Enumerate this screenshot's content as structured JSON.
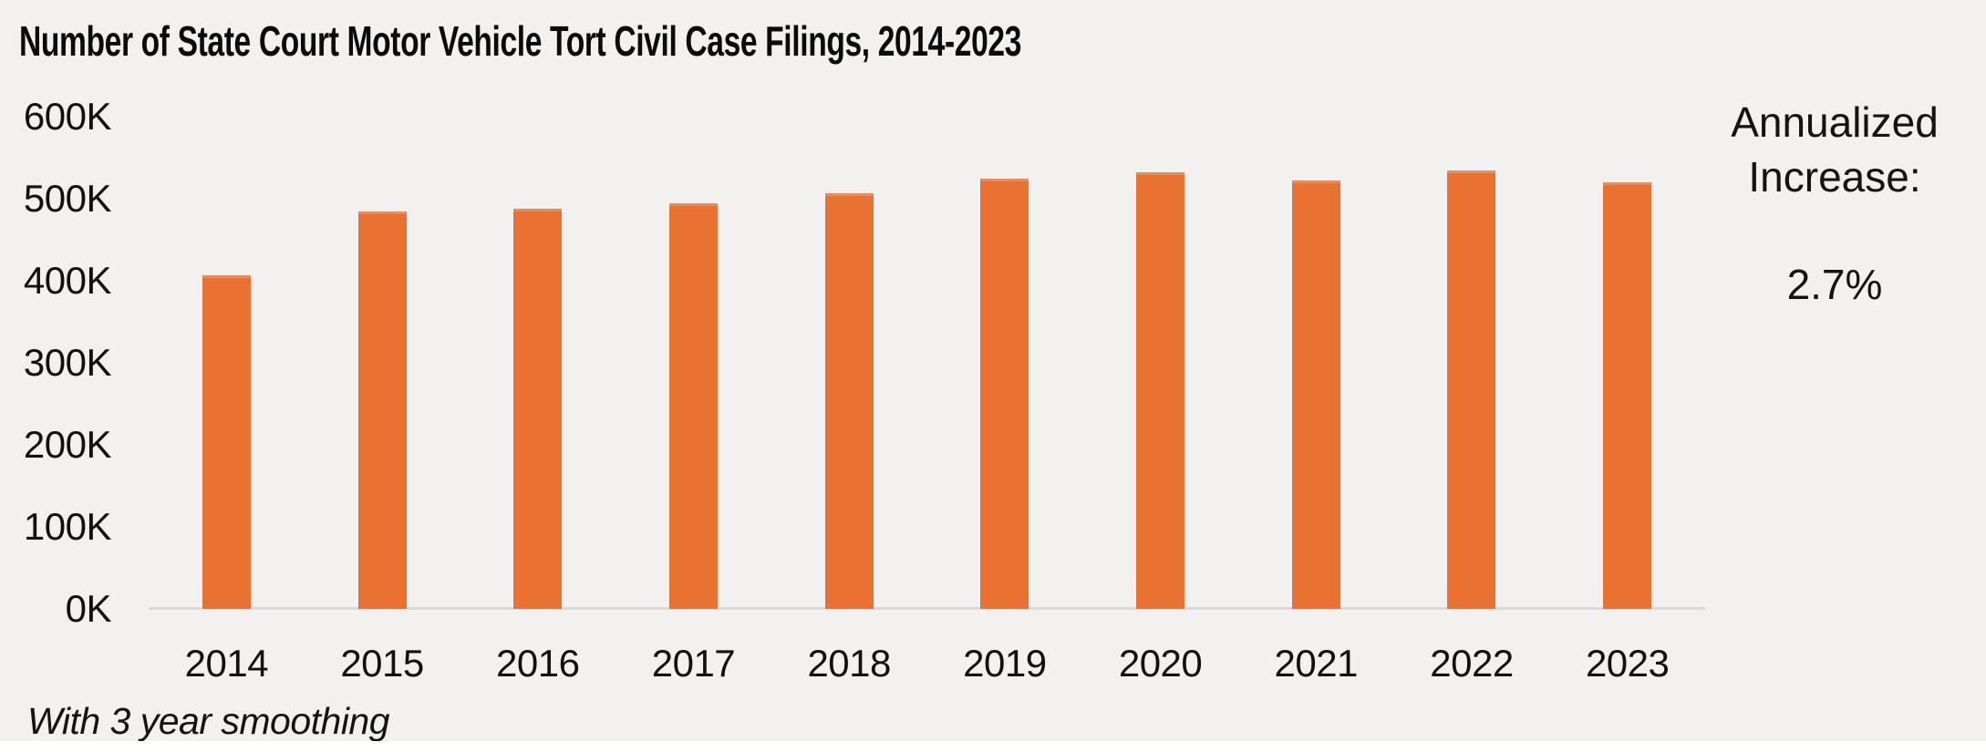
{
  "title": "Number of State Court Motor Vehicle Tort Civil Case Filings, 2014-2023",
  "footnote": "With 3 year smoothing",
  "annotation": {
    "line1": "Annualized",
    "line2": "Increase:",
    "value": "2.7%"
  },
  "colors": {
    "bar": "#E97132",
    "bar_top_edge": "#EE8A52",
    "background": "#F2F1F0",
    "axis_line": "#D9D9D9",
    "text": "#0B0B0B",
    "bottom_strip": "#FFFFFF"
  },
  "chart_data": {
    "type": "bar",
    "title": "Number of State Court Motor Vehicle Tort Civil Case Filings, 2014-2023",
    "xlabel": "",
    "ylabel": "",
    "categories": [
      "2014",
      "2015",
      "2016",
      "2017",
      "2018",
      "2019",
      "2020",
      "2021",
      "2022",
      "2023"
    ],
    "values": [
      407000,
      484000,
      488000,
      494000,
      507000,
      524000,
      532000,
      522000,
      534000,
      520000
    ],
    "series_note": "values are case filings, read from axis; chart smoothed over 3 years",
    "y_tick_labels_top_to_bottom": [
      "600K",
      "500K",
      "400K",
      "300K",
      "200K",
      "100K",
      "0K"
    ],
    "ylim": [
      0,
      600000
    ],
    "grid": false,
    "legend": false,
    "annotation_text": "Annualized Increase: 2.7%"
  }
}
